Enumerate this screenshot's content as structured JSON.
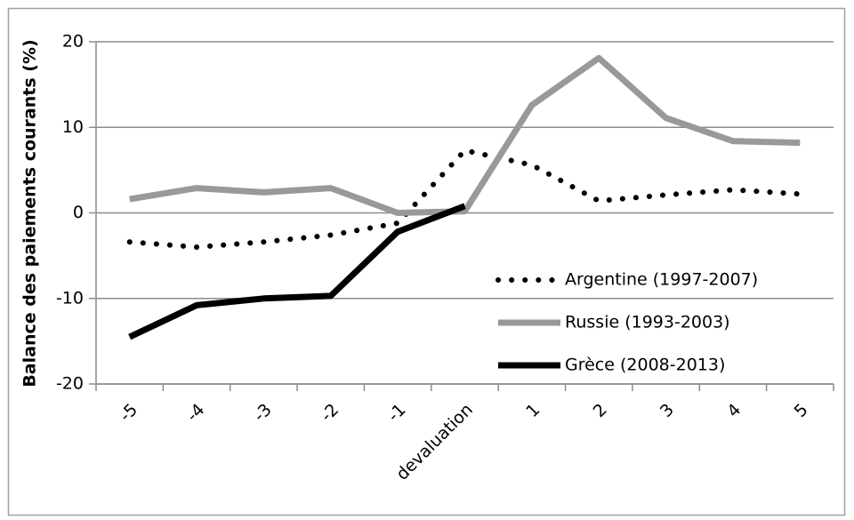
{
  "chart_data": {
    "type": "line",
    "y_label": "Balance des paiements courants (%)",
    "categories": [
      "-5",
      "-4",
      "-3",
      "-2",
      "-1",
      "devaluation",
      "1",
      "2",
      "3",
      "4",
      "5"
    ],
    "series": [
      {
        "name": "Argentine (1997-2007)",
        "color": "#000000",
        "style": "dotted",
        "values": [
          -3.4,
          -4.0,
          -3.4,
          -2.6,
          -1.2,
          7.3,
          5.6,
          1.4,
          2.1,
          2.7,
          2.2
        ]
      },
      {
        "name": "Russie (1993-2003)",
        "color": "#999999",
        "style": "solid",
        "values": [
          1.6,
          2.9,
          2.4,
          2.9,
          0,
          0.2,
          12.6,
          18.1,
          11.1,
          8.4,
          8.2
        ]
      },
      {
        "name": "Grèce (2008-2013)",
        "color": "#000000",
        "style": "solid",
        "values": [
          -14.5,
          -10.8,
          -10.0,
          -9.7,
          -2.2,
          0.8,
          null,
          null,
          null,
          null,
          null
        ]
      }
    ],
    "ylim": [
      -20,
      20
    ],
    "yticks": [
      -20,
      -10,
      0,
      10,
      20
    ],
    "grid": true,
    "legend": "lower right"
  }
}
